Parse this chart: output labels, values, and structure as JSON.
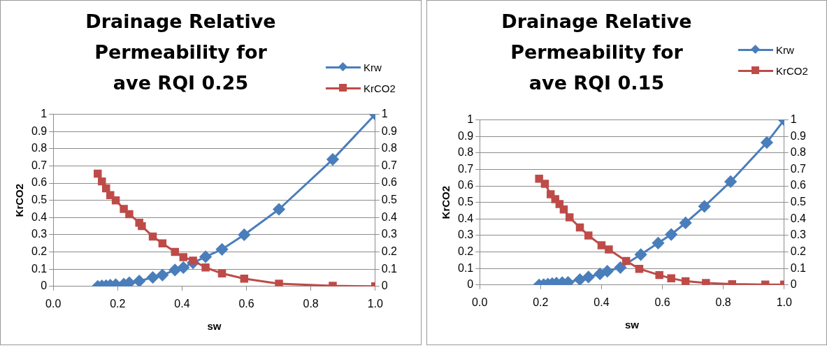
{
  "chart_data": [
    {
      "type": "line",
      "title": "Drainage Relative Permeability for ave RQI 0.25",
      "xlabel": "sw",
      "ylabel": "KrCO2",
      "legend": "top right",
      "grid": "y",
      "xlim": [
        0,
        1
      ],
      "xticks": [
        {
          "value": 0,
          "label": "0.0"
        },
        {
          "value": 0.2,
          "label": "0.2"
        },
        {
          "value": 0.4,
          "label": "0.4"
        },
        {
          "value": 0.6,
          "label": "0.6"
        },
        {
          "value": 0.8,
          "label": "0.8"
        },
        {
          "value": 1,
          "label": "1.0"
        }
      ],
      "ylim": [
        0,
        1
      ],
      "yticks": [
        0,
        0.1,
        0.2,
        0.3,
        0.4,
        0.5,
        0.6,
        0.7,
        0.8,
        0.9,
        1
      ],
      "y2lim": [
        0,
        1
      ],
      "y2ticks": [
        0,
        0.1,
        0.2,
        0.3,
        0.4,
        0.5,
        0.6,
        0.7,
        0.8,
        0.9,
        1
      ],
      "series": [
        {
          "name": "Krw",
          "color": "#4a7ebb",
          "marker": "diamond",
          "x": [
            0.138,
            0.151,
            0.164,
            0.177,
            0.194,
            0.219,
            0.236,
            0.267,
            0.309,
            0.339,
            0.378,
            0.404,
            0.434,
            0.473,
            0.524,
            0.593,
            0.701,
            0.868,
            1.0
          ],
          "values": [
            0,
            0.003,
            0.004,
            0.007,
            0.01,
            0.013,
            0.021,
            0.031,
            0.052,
            0.066,
            0.095,
            0.109,
            0.137,
            0.172,
            0.215,
            0.3,
            0.448,
            0.738,
            1.0
          ]
        },
        {
          "name": "KrCO2",
          "color": "#be4b48",
          "marker": "square",
          "x": [
            0.138,
            0.151,
            0.164,
            0.177,
            0.194,
            0.219,
            0.236,
            0.267,
            0.275,
            0.309,
            0.339,
            0.378,
            0.404,
            0.434,
            0.473,
            0.524,
            0.593,
            0.701,
            0.868,
            1.0
          ],
          "values": [
            0.655,
            0.61,
            0.57,
            0.53,
            0.5,
            0.45,
            0.42,
            0.37,
            0.35,
            0.29,
            0.25,
            0.2,
            0.17,
            0.15,
            0.11,
            0.075,
            0.045,
            0.015,
            0.003,
            0.0
          ]
        }
      ]
    },
    {
      "type": "line",
      "title": "Drainage Relative Permeability for ave RQI 0.15",
      "xlabel": "sw",
      "ylabel": "KrCO2",
      "legend": "top right",
      "grid": "y",
      "xlim": [
        0,
        1
      ],
      "xticks": [
        {
          "value": 0,
          "label": "0.0"
        },
        {
          "value": 0.2,
          "label": "0.2"
        },
        {
          "value": 0.4,
          "label": "0.4"
        },
        {
          "value": 0.6,
          "label": "0.6"
        },
        {
          "value": 0.8,
          "label": "0.8"
        },
        {
          "value": 1,
          "label": "1.0"
        }
      ],
      "ylim": [
        0,
        1
      ],
      "yticks": [
        0,
        0.1,
        0.2,
        0.3,
        0.4,
        0.5,
        0.6,
        0.7,
        0.8,
        0.9,
        1
      ],
      "y2lim": [
        0,
        1
      ],
      "y2ticks": [
        0,
        0.1,
        0.2,
        0.3,
        0.4,
        0.5,
        0.6,
        0.7,
        0.8,
        0.9,
        1
      ],
      "series": [
        {
          "name": "Krw",
          "color": "#4a7ebb",
          "marker": "diamond",
          "x": [
            0.195,
            0.21,
            0.224,
            0.238,
            0.252,
            0.271,
            0.29,
            0.329,
            0.357,
            0.395,
            0.419,
            0.462,
            0.529,
            0.586,
            0.629,
            0.676,
            0.738,
            0.824,
            0.943,
            1.0
          ],
          "values": [
            0,
            0.002,
            0.005,
            0.008,
            0.011,
            0.014,
            0.016,
            0.033,
            0.048,
            0.067,
            0.083,
            0.106,
            0.184,
            0.254,
            0.306,
            0.376,
            0.476,
            0.626,
            0.863,
            1.0
          ]
        },
        {
          "name": "KrCO2",
          "color": "#be4b48",
          "marker": "square",
          "x": [
            0.195,
            0.214,
            0.233,
            0.248,
            0.262,
            0.276,
            0.295,
            0.329,
            0.357,
            0.4,
            0.424,
            0.481,
            0.524,
            0.59,
            0.629,
            0.676,
            0.743,
            0.829,
            0.938,
            1.0
          ],
          "values": [
            0.644,
            0.613,
            0.55,
            0.52,
            0.49,
            0.457,
            0.41,
            0.348,
            0.3,
            0.24,
            0.215,
            0.145,
            0.098,
            0.06,
            0.04,
            0.023,
            0.012,
            0.005,
            0.002,
            0.002
          ]
        }
      ]
    }
  ]
}
